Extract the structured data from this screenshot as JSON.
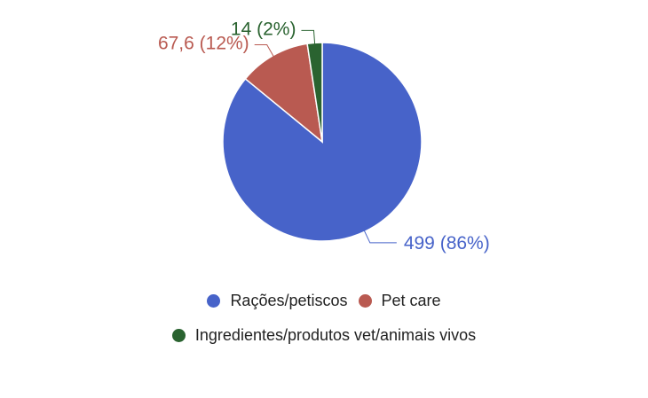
{
  "chart_data": {
    "type": "pie",
    "categories": [
      "Rações/petiscos",
      "Pet care",
      "Ingredientes/produtos vet/animais vivos"
    ],
    "values": [
      499,
      67.6,
      14
    ],
    "data_labels": [
      "499 (86%)",
      "67,6 (12%)",
      "14 (2%)"
    ],
    "colors": [
      "#4763c9",
      "#b95a51",
      "#2a6330"
    ],
    "legend_position": "bottom"
  },
  "legend": {
    "items": [
      {
        "label": "Rações/petiscos",
        "color": "#4763c9"
      },
      {
        "label": "Pet care",
        "color": "#b95a51"
      },
      {
        "label": "Ingredientes/produtos vet/animais vivos",
        "color": "#2a6330"
      }
    ]
  }
}
